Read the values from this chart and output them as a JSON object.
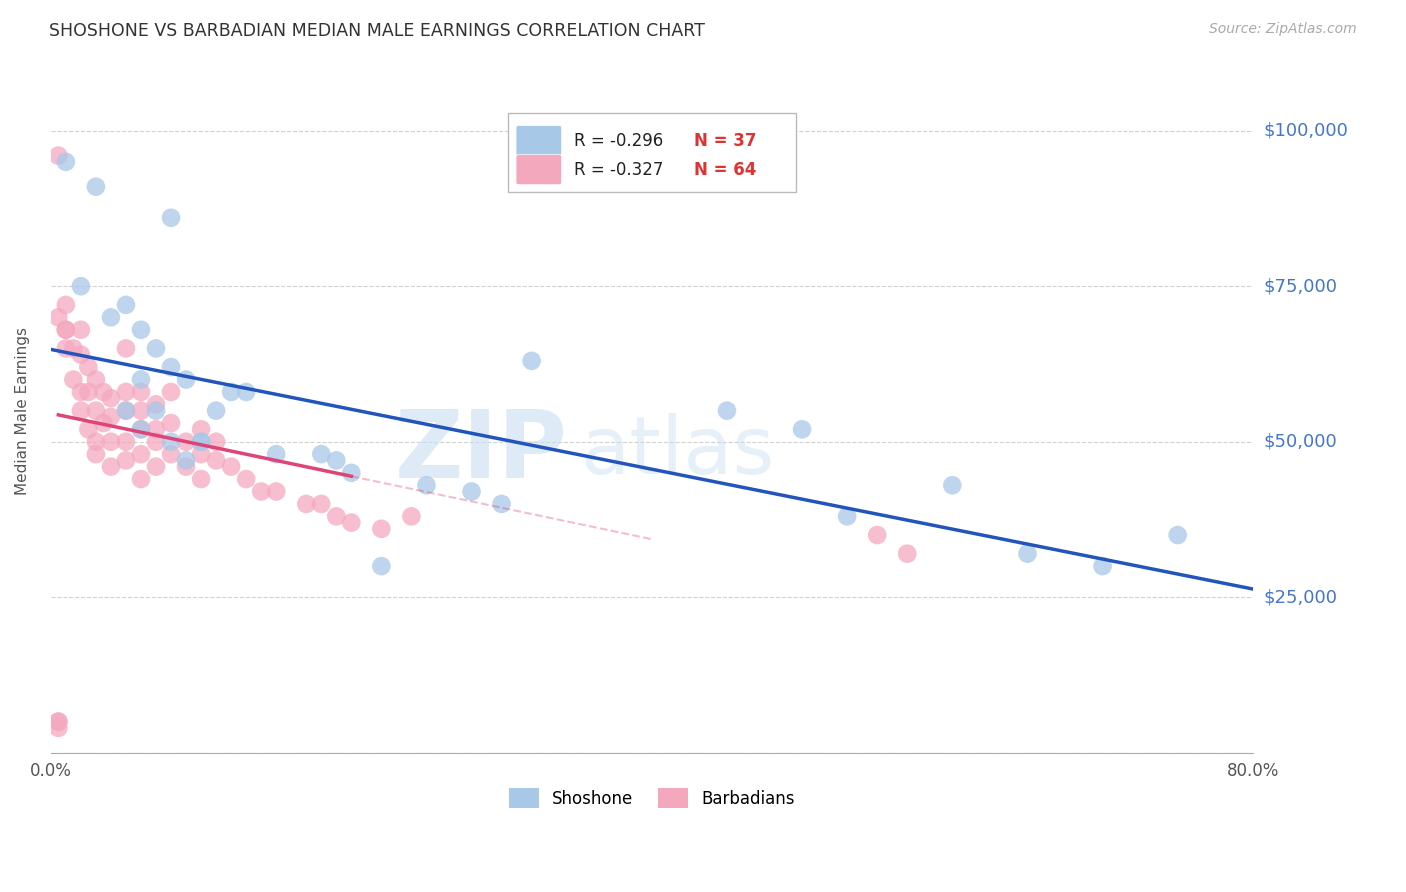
{
  "title": "SHOSHONE VS BARBADIAN MEDIAN MALE EARNINGS CORRELATION CHART",
  "source": "Source: ZipAtlas.com",
  "ylabel": "Median Male Earnings",
  "background_color": "#ffffff",
  "watermark_text": "ZIP",
  "watermark_text2": "atlas",
  "xlim": [
    0.0,
    0.8
  ],
  "ylim": [
    0,
    110000
  ],
  "yticks": [
    0,
    25000,
    50000,
    75000,
    100000
  ],
  "ytick_labels_right": [
    "",
    "$25,000",
    "$50,000",
    "$75,000",
    "$100,000"
  ],
  "xticks": [
    0.0,
    0.1,
    0.2,
    0.3,
    0.4,
    0.5,
    0.6,
    0.7,
    0.8
  ],
  "xtick_labels": [
    "0.0%",
    "",
    "",
    "",
    "",
    "",
    "",
    "",
    "80.0%"
  ],
  "shoshone_color": "#a8c8e8",
  "barbadian_color": "#f4a8be",
  "shoshone_line_color": "#2255bb",
  "barbadian_line_color": "#dd4477",
  "legend_R_shoshone": "R = -0.296",
  "legend_N_shoshone": "N = 37",
  "legend_R_barbadian": "R = -0.327",
  "legend_N_barbadian": "N = 64",
  "shoshone_x": [
    0.01,
    0.03,
    0.08,
    0.02,
    0.05,
    0.06,
    0.07,
    0.08,
    0.09,
    0.05,
    0.06,
    0.07,
    0.08,
    0.1,
    0.11,
    0.13,
    0.15,
    0.18,
    0.2,
    0.22,
    0.25,
    0.3,
    0.32,
    0.45,
    0.5,
    0.53,
    0.6,
    0.65,
    0.7,
    0.75,
    0.04,
    0.06,
    0.09,
    0.1,
    0.12,
    0.19,
    0.28
  ],
  "shoshone_y": [
    95000,
    91000,
    86000,
    75000,
    72000,
    68000,
    65000,
    62000,
    60000,
    55000,
    52000,
    55000,
    50000,
    50000,
    55000,
    58000,
    48000,
    48000,
    45000,
    30000,
    43000,
    40000,
    63000,
    55000,
    52000,
    38000,
    43000,
    32000,
    30000,
    35000,
    70000,
    60000,
    47000,
    50000,
    58000,
    47000,
    42000
  ],
  "barbadian_x": [
    0.005,
    0.005,
    0.01,
    0.01,
    0.01,
    0.01,
    0.015,
    0.015,
    0.02,
    0.02,
    0.02,
    0.02,
    0.025,
    0.025,
    0.025,
    0.03,
    0.03,
    0.03,
    0.03,
    0.035,
    0.035,
    0.04,
    0.04,
    0.04,
    0.04,
    0.05,
    0.05,
    0.05,
    0.05,
    0.05,
    0.06,
    0.06,
    0.06,
    0.06,
    0.06,
    0.07,
    0.07,
    0.07,
    0.07,
    0.08,
    0.08,
    0.08,
    0.09,
    0.09,
    0.1,
    0.1,
    0.1,
    0.11,
    0.11,
    0.12,
    0.13,
    0.14,
    0.15,
    0.17,
    0.18,
    0.19,
    0.2,
    0.22,
    0.24,
    0.55,
    0.57,
    0.005,
    0.005,
    0.005
  ],
  "barbadian_y": [
    96000,
    70000,
    68000,
    65000,
    72000,
    68000,
    65000,
    60000,
    68000,
    58000,
    55000,
    64000,
    62000,
    58000,
    52000,
    60000,
    55000,
    50000,
    48000,
    58000,
    53000,
    57000,
    54000,
    50000,
    46000,
    65000,
    58000,
    55000,
    50000,
    47000,
    58000,
    55000,
    52000,
    48000,
    44000,
    56000,
    52000,
    50000,
    46000,
    58000,
    53000,
    48000,
    50000,
    46000,
    52000,
    48000,
    44000,
    50000,
    47000,
    46000,
    44000,
    42000,
    42000,
    40000,
    40000,
    38000,
    37000,
    36000,
    38000,
    35000,
    32000,
    5000,
    5000,
    4000
  ],
  "barbadian_line_x_start": 0.005,
  "barbadian_line_x_solid_end": 0.2,
  "barbadian_line_x_dashed_end": 0.4
}
